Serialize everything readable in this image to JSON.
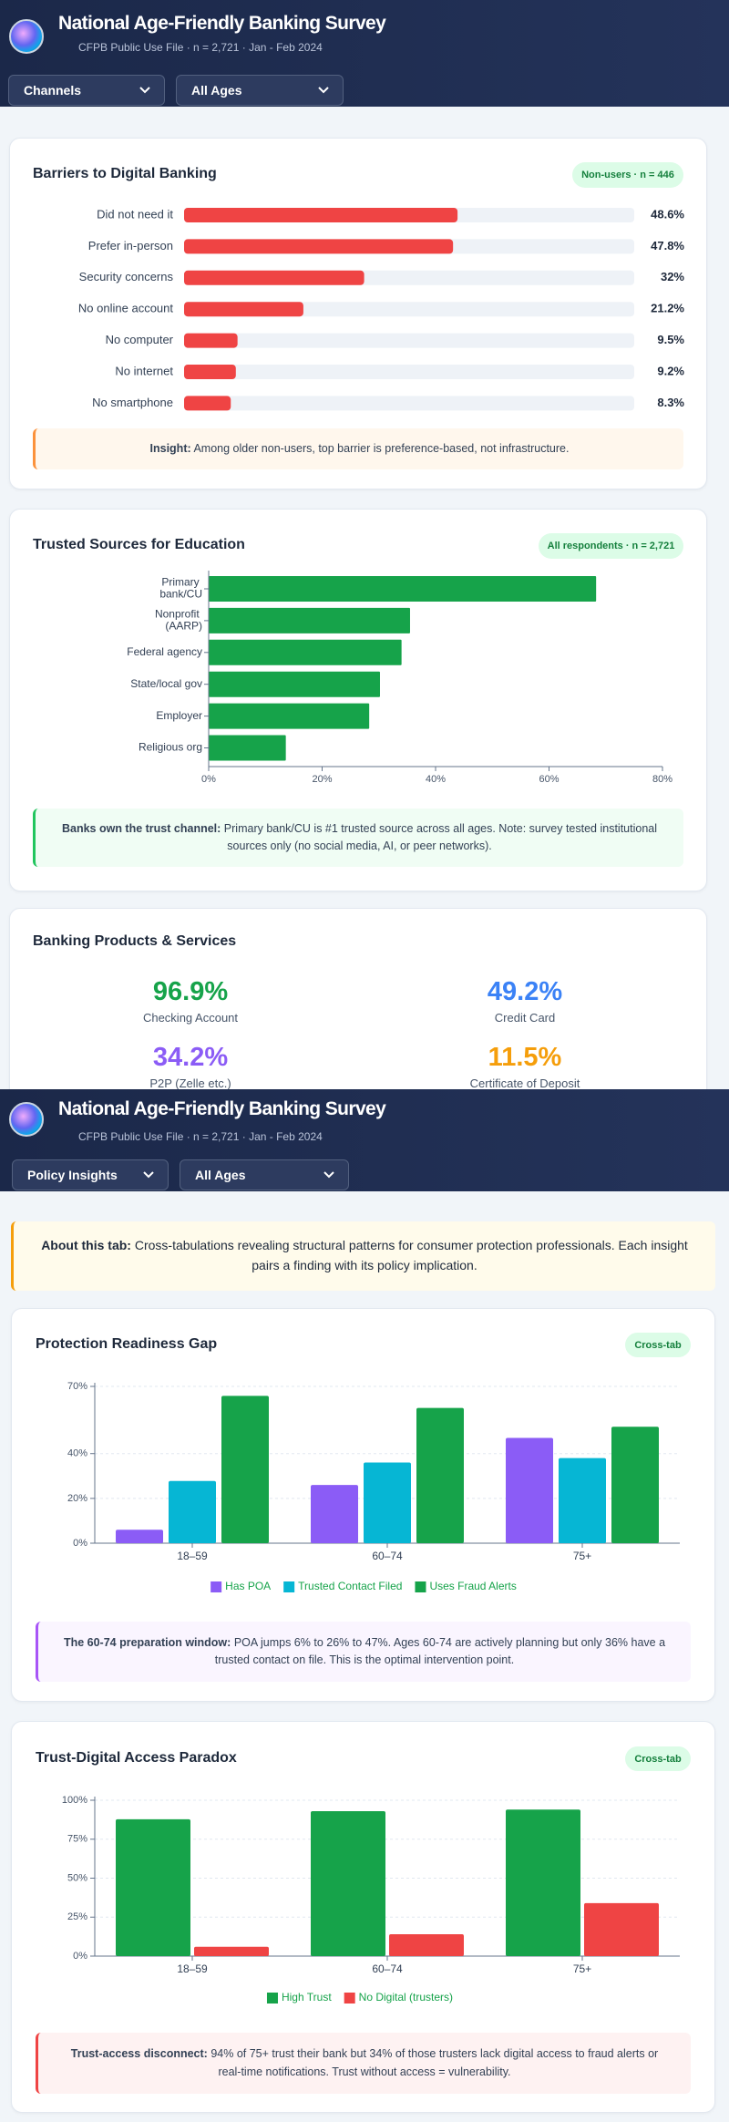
{
  "screens": [
    {
      "header": {
        "title": "National Age-Friendly Banking Survey",
        "subtitle": "CFPB Public Use File · n = 2,721 · Jan - Feb 2024"
      },
      "dropdowns": [
        "Channels",
        "All Ages"
      ]
    },
    {
      "header": {
        "title": "National Age-Friendly Banking Survey",
        "subtitle": "CFPB Public Use File · n = 2,721 · Jan - Feb 2024"
      },
      "dropdowns": [
        "Policy Insights",
        "All Ages"
      ]
    }
  ],
  "products": {
    "title": "Banking Products & Services",
    "stats": [
      {
        "value": "96.9%",
        "label": "Checking Account",
        "color": "#16a34a"
      },
      {
        "value": "49.2%",
        "label": "Credit Card",
        "color": "#3b82f6"
      },
      {
        "value": "34.2%",
        "label": "P2P (Zelle etc.)",
        "color": "#8b5cf6"
      },
      {
        "value": "11.5%",
        "label": "Certificate of Deposit",
        "color": "#f59e0b"
      }
    ]
  },
  "about": {
    "lead": "About this tab:",
    "text": "Cross-tabulations revealing structural patterns for consumer protection professionals. Each insight pairs a finding with its policy implication."
  },
  "chart_data": [
    {
      "type": "bar",
      "title": "Barriers to Digital Banking",
      "badge": "Non-users · n = 446",
      "categories": [
        "Did not need it",
        "Prefer in-person",
        "Security concerns",
        "No online account",
        "No computer",
        "No internet",
        "No smartphone"
      ],
      "values": [
        48.6,
        47.8,
        32,
        21.2,
        9.5,
        9.2,
        8.3
      ],
      "value_labels": [
        "48.6%",
        "47.8%",
        "32%",
        "21.2%",
        "9.5%",
        "9.2%",
        "8.3%"
      ],
      "color": "#ef4444",
      "xlim": [
        0,
        80
      ],
      "note": {
        "lead": "Insight:",
        "text": "Among older non-users, top barrier is preference-based, not infrastructure."
      }
    },
    {
      "type": "bar",
      "title": "Trusted Sources for Education",
      "badge": "All respondents · n = 2,721",
      "categories": [
        "Primary bank/CU",
        "Nonprofit (AARP)",
        "Federal agency",
        "State/local gov",
        "Employer",
        "Religious org"
      ],
      "values": [
        68.3,
        35.5,
        34,
        30.2,
        28.3,
        13.6
      ],
      "color": "#16a34a",
      "xlim": [
        0,
        80
      ],
      "xticks": [
        {
          "value": 0,
          "label": "0%"
        },
        {
          "value": 20,
          "label": "20%"
        },
        {
          "value": 40,
          "label": "40%"
        },
        {
          "value": 60,
          "label": "60%"
        },
        {
          "value": 80,
          "label": "80%"
        }
      ],
      "note": {
        "lead": "Banks own the trust channel:",
        "text": "Primary bank/CU is #1 trusted source across all ages. Note: survey tested institutional sources only (no social media, AI, or peer networks)."
      }
    },
    {
      "type": "bar",
      "title": "Protection Readiness Gap",
      "badge": "Cross-tab",
      "categories": [
        "18–59",
        "60–74",
        "75+"
      ],
      "series": [
        {
          "name": "Has POA",
          "color": "#8b5cf6",
          "values": [
            6,
            26,
            47
          ]
        },
        {
          "name": "Trusted Contact Filed",
          "color": "#06b6d4",
          "values": [
            27.8,
            36,
            38
          ]
        },
        {
          "name": "Uses Fraud Alerts",
          "color": "#16a34a",
          "values": [
            65.8,
            60.4,
            52
          ]
        }
      ],
      "ylim": [
        0,
        70
      ],
      "yticks": [
        {
          "value": 0,
          "label": "0%"
        },
        {
          "value": 20,
          "label": "20%"
        },
        {
          "value": 40,
          "label": "40%"
        },
        {
          "value": 70,
          "label": "70%"
        }
      ],
      "grid": true,
      "note": {
        "lead": "The 60-74 preparation window:",
        "text": "POA jumps 6% to 26% to 47%. Ages 60-74 are actively planning but only 36% have a trusted contact on file. This is the optimal intervention point."
      }
    },
    {
      "type": "bar",
      "title": "Trust-Digital Access Paradox",
      "badge": "Cross-tab",
      "categories": [
        "18–59",
        "60–74",
        "75+"
      ],
      "series": [
        {
          "name": "High Trust",
          "color": "#16a34a",
          "values": [
            87.8,
            93,
            94
          ]
        },
        {
          "name": "No Digital (trusters)",
          "color": "#ef4444",
          "values": [
            6,
            14,
            34
          ]
        }
      ],
      "ylim": [
        0,
        100
      ],
      "yticks": [
        {
          "value": 0,
          "label": "0%"
        },
        {
          "value": 25,
          "label": "25%"
        },
        {
          "value": 50,
          "label": "50%"
        },
        {
          "value": 75,
          "label": "75%"
        },
        {
          "value": 100,
          "label": "100%"
        }
      ],
      "grid": true,
      "note": {
        "lead": "Trust-access disconnect:",
        "text": "94% of 75+ trust their bank but 34% of those trusters lack digital access to fraud alerts or real-time notifications. Trust without access = vulnerability."
      }
    }
  ]
}
